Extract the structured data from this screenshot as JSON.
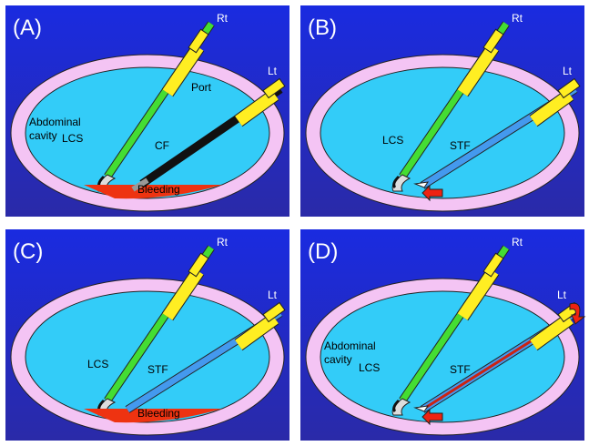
{
  "panels": [
    {
      "label": "(A)",
      "rt": "Rt",
      "lt": "Lt",
      "port": "Port",
      "cavity": [
        "Abdominal",
        "cavity"
      ],
      "lcs": "LCS",
      "tool": "CF",
      "bleeding": "Bleeding"
    },
    {
      "label": "(B)",
      "rt": "Rt",
      "lt": "Lt",
      "lcs": "LCS",
      "tool": "STF"
    },
    {
      "label": "(C)",
      "rt": "Rt",
      "lt": "Lt",
      "lcs": "LCS",
      "tool": "STF",
      "bleeding": "Bleeding"
    },
    {
      "label": "(D)",
      "rt": "Rt",
      "lt": "Lt",
      "cavity": [
        "Abdominal",
        "cavity"
      ],
      "lcs": "LCS",
      "tool": "STF"
    }
  ]
}
